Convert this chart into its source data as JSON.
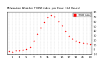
{
  "title": "Milwaukee Weather THSW Index per Hour (24 Hours)",
  "x_hours": [
    0,
    1,
    2,
    3,
    4,
    5,
    6,
    7,
    8,
    9,
    10,
    11,
    12,
    13,
    14,
    15,
    16,
    17,
    18,
    19,
    20,
    21,
    22,
    23
  ],
  "y_values": [
    -4,
    -5,
    -3,
    -2,
    -1,
    0,
    5,
    18,
    32,
    46,
    58,
    68,
    72,
    70,
    60,
    50,
    38,
    28,
    22,
    18,
    15,
    14,
    12,
    10
  ],
  "dot_color": "#ff0000",
  "background_color": "#ffffff",
  "grid_color": "#cccccc",
  "ylim": [
    -10,
    80
  ],
  "xlim": [
    -0.5,
    23.5
  ],
  "ytick_pos": [
    -10,
    0,
    10,
    20,
    30,
    40,
    50,
    60,
    70,
    80
  ],
  "legend_label": "THSW Index",
  "legend_color": "#ff0000"
}
